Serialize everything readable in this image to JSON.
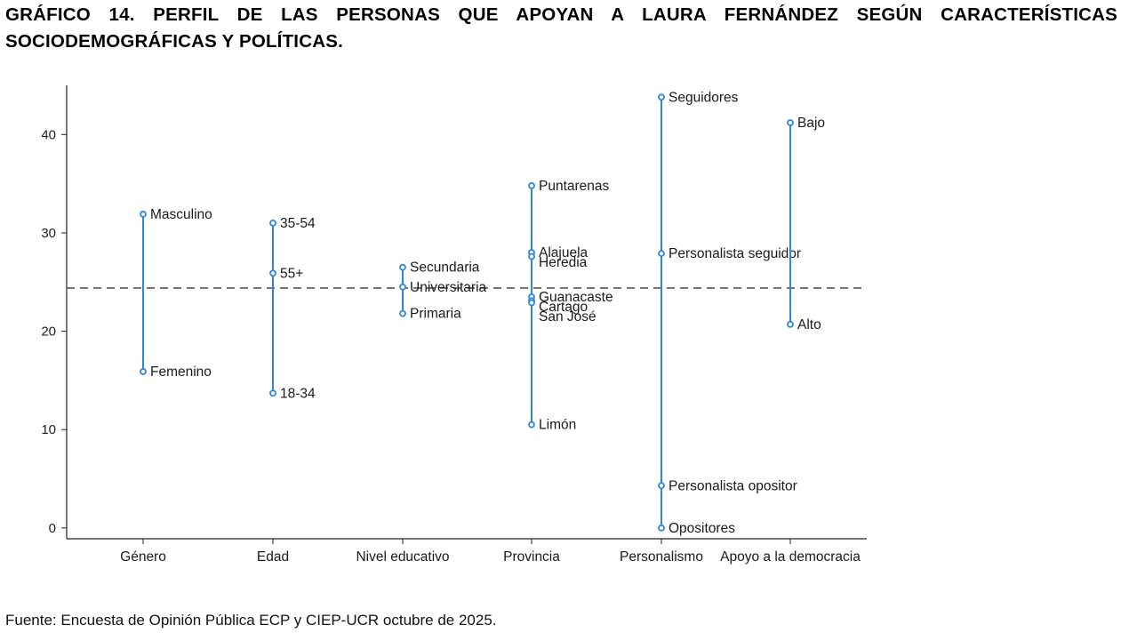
{
  "title": "GRÁFICO 14. PERFIL DE LAS PERSONAS QUE APOYAN A LAURA FERNÁNDEZ SEGÚN CARACTERÍSTICAS SOCIODEMOGRÁFICAS Y POLÍTICAS.",
  "source": "Fuente: Encuesta de Opinión Pública ECP y CIEP-UCR octubre de 2025.",
  "colors": {
    "series": "#2e86de",
    "reference": "#555555",
    "axis": "#222222"
  },
  "chart_data": {
    "type": "dot-range",
    "title": "GRÁFICO 14. PERFIL DE LAS PERSONAS QUE APOYAN A LAURA FERNÁNDEZ SEGÚN CARACTERÍSTICAS SOCIODEMOGRÁFICAS Y POLÍTICAS.",
    "xlabel": "",
    "ylabel": "",
    "ylim": [
      -1.1,
      45
    ],
    "yticks": [
      0,
      10,
      20,
      30,
      40
    ],
    "reference_line": 24.4,
    "categories": [
      "Género",
      "Edad",
      "Nivel educativo",
      "Provincia",
      "Personalismo",
      "Apoyo a la democracia"
    ],
    "groups": [
      {
        "category": "Género",
        "points": [
          {
            "label": "Masculino",
            "value": 31.9
          },
          {
            "label": "Femenino",
            "value": 15.9
          }
        ]
      },
      {
        "category": "Edad",
        "points": [
          {
            "label": "35-54",
            "value": 31.0
          },
          {
            "label": "55+",
            "value": 25.9
          },
          {
            "label": "18-34",
            "value": 13.7
          }
        ]
      },
      {
        "category": "Nivel educativo",
        "points": [
          {
            "label": "Secundaria",
            "value": 26.5
          },
          {
            "label": "Universitaria",
            "value": 24.5
          },
          {
            "label": "Primaria",
            "value": 21.8
          }
        ]
      },
      {
        "category": "Provincia",
        "points": [
          {
            "label": "Puntarenas",
            "value": 34.8
          },
          {
            "label": "Alajuela",
            "value": 28.0
          },
          {
            "label": "Heredia",
            "value": 27.6
          },
          {
            "label": "Guanacaste",
            "value": 23.5
          },
          {
            "label": "Cartago",
            "value": 23.1
          },
          {
            "label": "San José",
            "value": 22.9
          },
          {
            "label": "Limón",
            "value": 10.5
          }
        ]
      },
      {
        "category": "Personalismo",
        "points": [
          {
            "label": "Seguidores",
            "value": 43.8
          },
          {
            "label": "Personalista seguidor",
            "value": 27.9
          },
          {
            "label": "Personalista opositor",
            "value": 4.3
          },
          {
            "label": "Opositores",
            "value": 0.0
          }
        ]
      },
      {
        "category": "Apoyo a la democracia",
        "points": [
          {
            "label": "Bajo",
            "value": 41.2
          },
          {
            "label": "Alto",
            "value": 20.7
          }
        ]
      }
    ]
  }
}
